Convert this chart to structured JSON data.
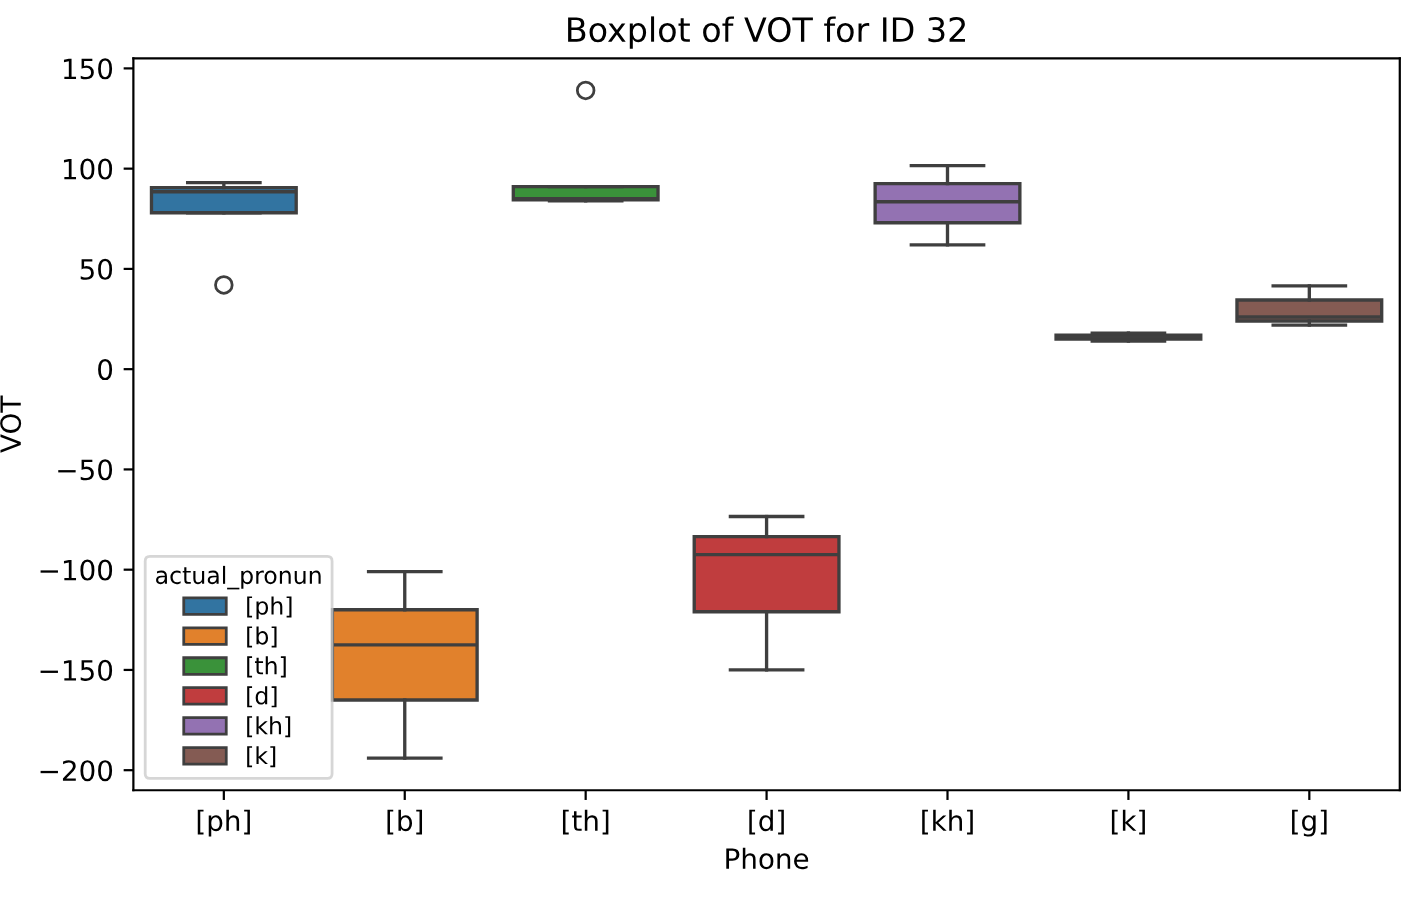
{
  "chart_data": {
    "type": "box",
    "title": "Boxplot of VOT for ID 32",
    "xlabel": "Phone",
    "ylabel": "VOT",
    "legend_title": "actual_pronun",
    "legend": "lower left",
    "grid": false,
    "categories": [
      "[ph]",
      "[b]",
      "[th]",
      "[d]",
      "[kh]",
      "[k]",
      "[g]"
    ],
    "ylim": [
      -210,
      155
    ],
    "yticks": [
      -200,
      -150,
      -100,
      -50,
      0,
      50,
      100,
      150
    ],
    "series": [
      {
        "name": "[ph]",
        "color": "#3274a1",
        "boxes": [
          {
            "low": 78,
            "q1": 78,
            "median": 88.5,
            "q3": 90.5,
            "high": 93,
            "outliers": [
              42
            ]
          },
          null,
          null,
          null,
          null,
          null,
          null
        ]
      },
      {
        "name": "[b]",
        "color": "#e1812c",
        "boxes": [
          null,
          {
            "low": -194,
            "q1": -165,
            "median": -137.5,
            "q3": -120,
            "high": -101
          },
          null,
          null,
          null,
          null,
          null
        ]
      },
      {
        "name": "[th]",
        "color": "#3a923a",
        "boxes": [
          null,
          null,
          {
            "low": 84,
            "q1": 84.5,
            "median": 85,
            "q3": 91,
            "high": 91,
            "outliers": [
              139
            ]
          },
          null,
          null,
          null,
          null
        ]
      },
      {
        "name": "[d]",
        "color": "#c03d3e",
        "boxes": [
          null,
          null,
          null,
          {
            "low": -150,
            "q1": -121,
            "median": -92.5,
            "q3": -83.5,
            "high": -73.5
          },
          null,
          null,
          null
        ]
      },
      {
        "name": "[kh]",
        "color": "#9372b2",
        "boxes": [
          null,
          null,
          null,
          null,
          {
            "low": 62,
            "q1": 73,
            "median": 83.5,
            "q3": 92.5,
            "high": 101.5
          },
          null,
          null
        ]
      },
      {
        "name": "[k]",
        "color": "#845b53",
        "boxes": [
          null,
          null,
          null,
          null,
          null,
          {
            "low": 14,
            "q1": 15,
            "median": 16,
            "q3": 17,
            "high": 18
          },
          {
            "low": 22,
            "q1": 24,
            "median": 26,
            "q3": 34.5,
            "high": 41.5
          }
        ]
      }
    ]
  }
}
